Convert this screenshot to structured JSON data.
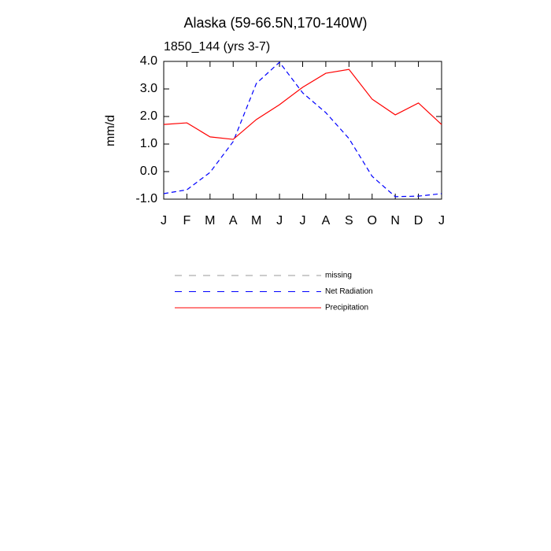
{
  "chart_data": {
    "type": "line",
    "title": "Alaska (59-66.5N,170-140W)",
    "subtitle": "1850_144 (yrs 3-7)",
    "y_label": "mm/d",
    "categories": [
      "J",
      "F",
      "M",
      "A",
      "M",
      "J",
      "J",
      "A",
      "S",
      "O",
      "N",
      "D",
      "J"
    ],
    "series": [
      {
        "name": "missing",
        "color": "#999999",
        "dash": true,
        "values": [
          null,
          null,
          null,
          null,
          null,
          null,
          null,
          null,
          null,
          null,
          null,
          null,
          null
        ]
      },
      {
        "name": "Net Radiation",
        "color": "#0000ff",
        "dash": true,
        "values": [
          -0.8,
          -0.66,
          -0.03,
          1.09,
          3.2,
          3.97,
          2.86,
          2.14,
          1.2,
          -0.17,
          -0.91,
          -0.89,
          -0.8
        ]
      },
      {
        "name": "Precipitation",
        "color": "#ff0000",
        "dash": false,
        "values": [
          1.71,
          1.77,
          1.26,
          1.17,
          1.89,
          2.43,
          3.06,
          3.57,
          3.71,
          2.63,
          2.06,
          2.49,
          1.71
        ]
      }
    ],
    "ylim": [
      -1,
      4
    ],
    "yticks": [
      {
        "value": -1,
        "label": "-1.0"
      },
      {
        "value": 0,
        "label": "0.0"
      },
      {
        "value": 1,
        "label": "1.0"
      },
      {
        "value": 2,
        "label": "2.0"
      },
      {
        "value": 3,
        "label": "3.0"
      },
      {
        "value": 4,
        "label": "4.0"
      }
    ],
    "grid": false
  }
}
